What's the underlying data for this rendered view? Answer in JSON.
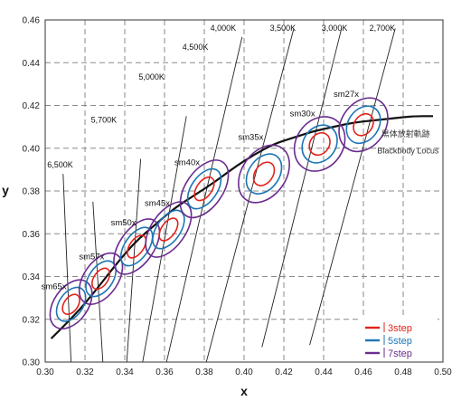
{
  "chart_data": {
    "type": "scatter",
    "xlabel": "x",
    "ylabel": "y",
    "xlim": [
      0.3,
      0.5
    ],
    "ylim": [
      0.3,
      0.46
    ],
    "x_ticks": [
      "0.30",
      "0.32",
      "0.34",
      "0.36",
      "0.38",
      "0.40",
      "0.42",
      "0.44",
      "0.46",
      "0.48",
      "0.50"
    ],
    "y_ticks": [
      "0.30",
      "0.32",
      "0.34",
      "0.36",
      "0.38",
      "0.40",
      "0.42",
      "0.44",
      "0.46"
    ],
    "grid": true,
    "blackbody_locus": {
      "label_ja": "黒体放射軌跡",
      "label_en": "Blackbody Locus",
      "color": "#111111",
      "points": [
        [
          0.303,
          0.311
        ],
        [
          0.315,
          0.322
        ],
        [
          0.325,
          0.333
        ],
        [
          0.335,
          0.345
        ],
        [
          0.345,
          0.356
        ],
        [
          0.355,
          0.364
        ],
        [
          0.365,
          0.372
        ],
        [
          0.375,
          0.378
        ],
        [
          0.385,
          0.384
        ],
        [
          0.395,
          0.391
        ],
        [
          0.405,
          0.397
        ],
        [
          0.415,
          0.402
        ],
        [
          0.425,
          0.405
        ],
        [
          0.435,
          0.408
        ],
        [
          0.445,
          0.41
        ],
        [
          0.455,
          0.412
        ],
        [
          0.465,
          0.413
        ],
        [
          0.475,
          0.414
        ],
        [
          0.485,
          0.415
        ],
        [
          0.495,
          0.415
        ]
      ]
    },
    "cct_lines": [
      {
        "label": "6,500K",
        "x1": 0.313,
        "y1": 0.3,
        "x2": 0.309,
        "y2": 0.388,
        "label_x": 0.301,
        "label_y": 0.391
      },
      {
        "label": "5,700K",
        "x1": 0.329,
        "y1": 0.3,
        "x2": 0.324,
        "y2": 0.375,
        "label_x": 0.323,
        "label_y": 0.412
      },
      {
        "label": "5,000K",
        "x1": 0.341,
        "y1": 0.3,
        "x2": 0.348,
        "y2": 0.395,
        "label_x": 0.347,
        "label_y": 0.432
      },
      {
        "label": "4,500K",
        "x1": 0.349,
        "y1": 0.3,
        "x2": 0.371,
        "y2": 0.415,
        "label_x": 0.369,
        "label_y": 0.446
      },
      {
        "label": "4,000K",
        "x1": 0.361,
        "y1": 0.3,
        "x2": 0.399,
        "y2": 0.452,
        "label_x": 0.383,
        "label_y": 0.455
      },
      {
        "label": "3,500K",
        "x1": 0.381,
        "y1": 0.3,
        "x2": 0.425,
        "y2": 0.456,
        "label_x": 0.413,
        "label_y": 0.455
      },
      {
        "label": "3,000K",
        "x1": 0.409,
        "y1": 0.307,
        "x2": 0.449,
        "y2": 0.456,
        "label_x": 0.439,
        "label_y": 0.455
      },
      {
        "label": "2,700K",
        "x1": 0.433,
        "y1": 0.308,
        "x2": 0.476,
        "y2": 0.456,
        "label_x": 0.463,
        "label_y": 0.455
      }
    ],
    "macadam_ellipses": [
      {
        "label": "sm65x",
        "cx": 0.313,
        "cy": 0.327,
        "a1": 0.0035,
        "b1": 0.0052,
        "label_x": 0.298,
        "label_y": 0.334
      },
      {
        "label": "sm57x",
        "cx": 0.328,
        "cy": 0.339,
        "a1": 0.0035,
        "b1": 0.0055,
        "label_x": 0.317,
        "label_y": 0.348
      },
      {
        "label": "sm50x",
        "cx": 0.346,
        "cy": 0.354,
        "a1": 0.0035,
        "b1": 0.006,
        "label_x": 0.333,
        "label_y": 0.364
      },
      {
        "label": "sm45x",
        "cx": 0.362,
        "cy": 0.362,
        "a1": 0.0035,
        "b1": 0.006,
        "label_x": 0.35,
        "label_y": 0.373
      },
      {
        "label": "sm40x",
        "cx": 0.38,
        "cy": 0.381,
        "a1": 0.0038,
        "b1": 0.0062,
        "label_x": 0.365,
        "label_y": 0.392
      },
      {
        "label": "sm35x",
        "cx": 0.41,
        "cy": 0.388,
        "a1": 0.0045,
        "b1": 0.006,
        "label_x": 0.397,
        "label_y": 0.404
      },
      {
        "label": "sm30x",
        "cx": 0.438,
        "cy": 0.402,
        "a1": 0.0048,
        "b1": 0.0055,
        "label_x": 0.423,
        "label_y": 0.415
      },
      {
        "label": "sm27x",
        "cx": 0.46,
        "cy": 0.411,
        "a1": 0.0045,
        "b1": 0.0055,
        "label_x": 0.445,
        "label_y": 0.424
      }
    ],
    "series": [
      {
        "name": "3step",
        "color": "#e2231a",
        "scale": 1.0
      },
      {
        "name": "5step",
        "color": "#1d75b5",
        "scale": 1.7
      },
      {
        "name": "7step",
        "color": "#6a2c8e",
        "scale": 2.45
      }
    ],
    "legend_position": "bottom-right"
  }
}
